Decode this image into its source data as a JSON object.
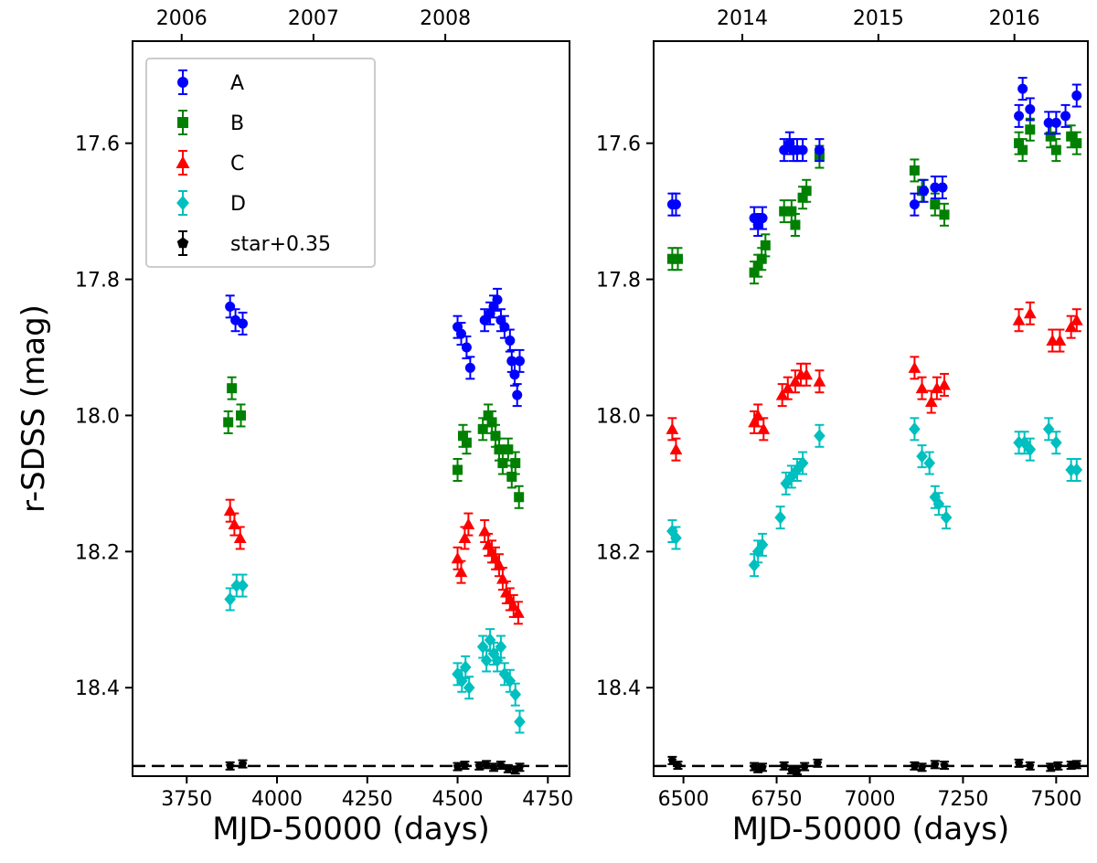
{
  "chart_data": {
    "type": "scatter",
    "ylabel": "r-SDSS (mag)",
    "ylim": [
      18.53,
      17.45
    ],
    "yticks": [
      17.6,
      17.8,
      18.0,
      18.2,
      18.4
    ],
    "ytick_labels": [
      "17.6",
      "17.8",
      "18.0",
      "18.2",
      "18.4"
    ],
    "reference_line": {
      "value": 18.515,
      "style": "dashed"
    },
    "series_meta": [
      {
        "key": "A",
        "name": "A",
        "color": "#0000ff",
        "marker": "circle"
      },
      {
        "key": "B",
        "name": "B",
        "color": "#008000",
        "marker": "square"
      },
      {
        "key": "C",
        "name": "C",
        "color": "#ff0000",
        "marker": "triangle"
      },
      {
        "key": "D",
        "name": "D",
        "color": "#00bfbf",
        "marker": "diamond"
      },
      {
        "key": "S",
        "name": "star+0.35",
        "color": "#000000",
        "marker": "pentagon"
      }
    ],
    "panels": [
      {
        "id": "left",
        "xlabel": "MJD-50000 (days)",
        "xlim": [
          3600,
          4810
        ],
        "xticks": [
          3750,
          4000,
          4250,
          4500,
          4750
        ],
        "xtick_labels": [
          "3750",
          "4000",
          "4250",
          "4500",
          "4750"
        ],
        "top_ticks": [
          3736,
          4101,
          4466
        ],
        "top_tick_labels": [
          "2006",
          "2007",
          "2008"
        ],
        "legend": true,
        "series": {
          "A": [
            [
              3870,
              17.84
            ],
            [
              3885,
              17.86
            ],
            [
              3905,
              17.865
            ],
            [
              4500,
              17.87
            ],
            [
              4510,
              17.88
            ],
            [
              4525,
              17.9
            ],
            [
              4535,
              17.93
            ],
            [
              4575,
              17.86
            ],
            [
              4590,
              17.85
            ],
            [
              4600,
              17.84
            ],
            [
              4610,
              17.83
            ],
            [
              4620,
              17.86
            ],
            [
              4630,
              17.87
            ],
            [
              4645,
              17.89
            ],
            [
              4650,
              17.92
            ],
            [
              4658,
              17.94
            ],
            [
              4665,
              17.97
            ],
            [
              4672,
              17.92
            ]
          ],
          "B": [
            [
              3865,
              18.01
            ],
            [
              3875,
              17.96
            ],
            [
              3900,
              18.0
            ],
            [
              4500,
              18.08
            ],
            [
              4515,
              18.03
            ],
            [
              4525,
              18.04
            ],
            [
              4570,
              18.02
            ],
            [
              4585,
              18.0
            ],
            [
              4595,
              18.01
            ],
            [
              4605,
              18.03
            ],
            [
              4615,
              18.05
            ],
            [
              4625,
              18.07
            ],
            [
              4640,
              18.05
            ],
            [
              4650,
              18.09
            ],
            [
              4660,
              18.07
            ],
            [
              4670,
              18.12
            ]
          ],
          "C": [
            [
              3870,
              18.14
            ],
            [
              3882,
              18.16
            ],
            [
              3898,
              18.18
            ],
            [
              4500,
              18.21
            ],
            [
              4510,
              18.23
            ],
            [
              4520,
              18.18
            ],
            [
              4530,
              18.16
            ],
            [
              4575,
              18.17
            ],
            [
              4585,
              18.19
            ],
            [
              4595,
              18.2
            ],
            [
              4605,
              18.21
            ],
            [
              4615,
              18.22
            ],
            [
              4625,
              18.24
            ],
            [
              4635,
              18.26
            ],
            [
              4645,
              18.27
            ],
            [
              4655,
              18.28
            ],
            [
              4668,
              18.29
            ]
          ],
          "D": [
            [
              3870,
              18.27
            ],
            [
              3888,
              18.25
            ],
            [
              3905,
              18.25
            ],
            [
              4500,
              18.38
            ],
            [
              4512,
              18.39
            ],
            [
              4522,
              18.37
            ],
            [
              4532,
              18.4
            ],
            [
              4570,
              18.34
            ],
            [
              4580,
              18.36
            ],
            [
              4590,
              18.33
            ],
            [
              4600,
              18.35
            ],
            [
              4610,
              18.36
            ],
            [
              4620,
              18.34
            ],
            [
              4630,
              18.38
            ],
            [
              4645,
              18.39
            ],
            [
              4660,
              18.41
            ],
            [
              4672,
              18.45
            ]
          ],
          "S": [
            [
              3870,
              18.515
            ],
            [
              3905,
              18.512
            ],
            [
              4500,
              18.516
            ],
            [
              4520,
              18.514
            ],
            [
              4560,
              18.515
            ],
            [
              4580,
              18.513
            ],
            [
              4600,
              18.517
            ],
            [
              4620,
              18.514
            ],
            [
              4640,
              18.519
            ],
            [
              4660,
              18.521
            ],
            [
              4672,
              18.517
            ]
          ]
        }
      },
      {
        "id": "right",
        "xlabel": "MJD-50000 (days)",
        "xlim": [
          6420,
          7585
        ],
        "xticks": [
          6500,
          6750,
          7000,
          7250,
          7500
        ],
        "xtick_labels": [
          "6500",
          "6750",
          "7000",
          "7250",
          "7500"
        ],
        "top_ticks": [
          6658,
          7023,
          7388
        ],
        "top_tick_labels": [
          "2014",
          "2015",
          "2016"
        ],
        "legend": false,
        "series": {
          "A": [
            [
              6470,
              17.69
            ],
            [
              6480,
              17.69
            ],
            [
              6690,
              17.71
            ],
            [
              6700,
              17.72
            ],
            [
              6712,
              17.71
            ],
            [
              6770,
              17.61
            ],
            [
              6785,
              17.6
            ],
            [
              6795,
              17.61
            ],
            [
              6805,
              17.61
            ],
            [
              6820,
              17.61
            ],
            [
              6865,
              17.61
            ],
            [
              7120,
              17.69
            ],
            [
              7145,
              17.67
            ],
            [
              7175,
              17.665
            ],
            [
              7195,
              17.665
            ],
            [
              7400,
              17.56
            ],
            [
              7410,
              17.52
            ],
            [
              7430,
              17.55
            ],
            [
              7480,
              17.57
            ],
            [
              7500,
              17.57
            ],
            [
              7525,
              17.56
            ],
            [
              7555,
              17.53
            ]
          ],
          "B": [
            [
              6470,
              17.77
            ],
            [
              6485,
              17.77
            ],
            [
              6690,
              17.79
            ],
            [
              6700,
              17.78
            ],
            [
              6710,
              17.77
            ],
            [
              6720,
              17.75
            ],
            [
              6770,
              17.7
            ],
            [
              6790,
              17.7
            ],
            [
              6800,
              17.72
            ],
            [
              6820,
              17.68
            ],
            [
              6830,
              17.67
            ],
            [
              6865,
              17.62
            ],
            [
              7120,
              17.64
            ],
            [
              7140,
              17.67
            ],
            [
              7175,
              17.69
            ],
            [
              7200,
              17.705
            ],
            [
              7400,
              17.6
            ],
            [
              7410,
              17.61
            ],
            [
              7430,
              17.58
            ],
            [
              7485,
              17.59
            ],
            [
              7500,
              17.61
            ],
            [
              7540,
              17.59
            ],
            [
              7555,
              17.6
            ]
          ],
          "C": [
            [
              6470,
              18.02
            ],
            [
              6480,
              18.05
            ],
            [
              6690,
              18.01
            ],
            [
              6700,
              18.0
            ],
            [
              6715,
              18.02
            ],
            [
              6765,
              17.97
            ],
            [
              6780,
              17.96
            ],
            [
              6800,
              17.95
            ],
            [
              6815,
              17.94
            ],
            [
              6830,
              17.94
            ],
            [
              6865,
              17.95
            ],
            [
              7120,
              17.93
            ],
            [
              7140,
              17.96
            ],
            [
              7165,
              17.98
            ],
            [
              7180,
              17.96
            ],
            [
              7200,
              17.955
            ],
            [
              7400,
              17.86
            ],
            [
              7430,
              17.85
            ],
            [
              7490,
              17.89
            ],
            [
              7510,
              17.89
            ],
            [
              7540,
              17.87
            ],
            [
              7555,
              17.86
            ]
          ],
          "D": [
            [
              6470,
              18.17
            ],
            [
              6480,
              18.18
            ],
            [
              6690,
              18.22
            ],
            [
              6700,
              18.2
            ],
            [
              6712,
              18.19
            ],
            [
              6760,
              18.15
            ],
            [
              6775,
              18.1
            ],
            [
              6790,
              18.09
            ],
            [
              6805,
              18.08
            ],
            [
              6820,
              18.07
            ],
            [
              6865,
              18.03
            ],
            [
              7120,
              18.02
            ],
            [
              7140,
              18.06
            ],
            [
              7160,
              18.07
            ],
            [
              7175,
              18.12
            ],
            [
              7185,
              18.13
            ],
            [
              7205,
              18.15
            ],
            [
              7400,
              18.04
            ],
            [
              7415,
              18.04
            ],
            [
              7430,
              18.05
            ],
            [
              7480,
              18.02
            ],
            [
              7500,
              18.04
            ],
            [
              7540,
              18.08
            ],
            [
              7555,
              18.08
            ]
          ],
          "S": [
            [
              6470,
              18.507
            ],
            [
              6485,
              18.514
            ],
            [
              6690,
              18.516
            ],
            [
              6700,
              18.519
            ],
            [
              6712,
              18.517
            ],
            [
              6770,
              18.515
            ],
            [
              6790,
              18.521
            ],
            [
              6805,
              18.522
            ],
            [
              6825,
              18.516
            ],
            [
              6860,
              18.511
            ],
            [
              7120,
              18.515
            ],
            [
              7140,
              18.517
            ],
            [
              7175,
              18.513
            ],
            [
              7200,
              18.514
            ],
            [
              7400,
              18.511
            ],
            [
              7430,
              18.515
            ],
            [
              7485,
              18.517
            ],
            [
              7505,
              18.515
            ],
            [
              7540,
              18.514
            ],
            [
              7555,
              18.513
            ]
          ]
        }
      }
    ]
  }
}
